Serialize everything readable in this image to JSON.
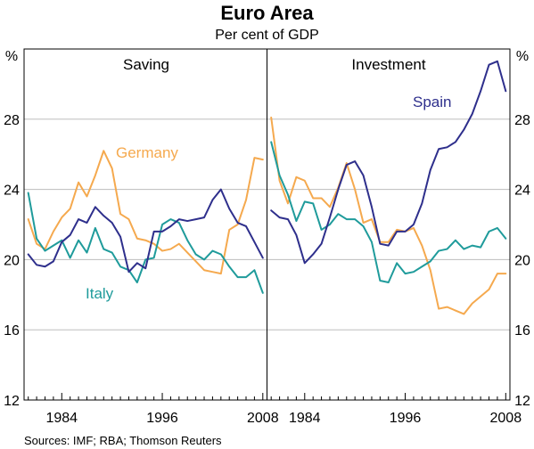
{
  "title": "Euro Area",
  "subtitle": "Per cent of GDP",
  "unit_left": "%",
  "unit_right": "%",
  "source": "Sources: IMF; RBA; Thomson Reuters",
  "colors": {
    "Germany": "#f5a94e",
    "Italy": "#1f9b9b",
    "Spain": "#2e2f8c",
    "grid": "#bdbdbd"
  },
  "chart_data": [
    {
      "type": "line",
      "title": "Saving",
      "ylim": [
        12,
        32
      ],
      "yticks": [
        12,
        16,
        20,
        24,
        28
      ],
      "xlim": [
        1979.5,
        2008.5
      ],
      "xticks": [
        1984,
        1996,
        2008
      ],
      "series": [
        {
          "name": "Germany",
          "x": [
            1980,
            1981,
            1982,
            1983,
            1984,
            1985,
            1986,
            1987,
            1988,
            1989,
            1990,
            1991,
            1992,
            1993,
            1994,
            1995,
            1996,
            1997,
            1998,
            1999,
            2000,
            2001,
            2002,
            2003,
            2004,
            2005,
            2006,
            2007,
            2008
          ],
          "values": [
            22.3,
            20.9,
            20.6,
            21.6,
            22.4,
            22.9,
            24.4,
            23.6,
            24.8,
            26.2,
            25.2,
            22.6,
            22.3,
            21.2,
            21.1,
            20.9,
            20.5,
            20.6,
            20.9,
            20.4,
            19.9,
            19.4,
            19.3,
            19.2,
            21.7,
            22.0,
            23.4,
            25.8,
            25.7
          ]
        },
        {
          "name": "Italy",
          "x": [
            1980,
            1981,
            1982,
            1983,
            1984,
            1985,
            1986,
            1987,
            1988,
            1989,
            1990,
            1991,
            1992,
            1993,
            1994,
            1995,
            1996,
            1997,
            1998,
            1999,
            2000,
            2001,
            2002,
            2003,
            2004,
            2005,
            2006,
            2007,
            2008
          ],
          "values": [
            23.8,
            21.2,
            20.5,
            20.8,
            21.1,
            20.1,
            21.1,
            20.4,
            21.8,
            20.6,
            20.4,
            19.6,
            19.4,
            18.7,
            20.0,
            20.1,
            22.0,
            22.3,
            22.1,
            21.1,
            20.3,
            20.0,
            20.5,
            20.3,
            19.6,
            19.0,
            19.0,
            19.4,
            18.1
          ]
        },
        {
          "name": "Spain",
          "x": [
            1980,
            1981,
            1982,
            1983,
            1984,
            1985,
            1986,
            1987,
            1988,
            1989,
            1990,
            1991,
            1992,
            1993,
            1994,
            1995,
            1996,
            1997,
            1998,
            1999,
            2000,
            2001,
            2002,
            2003,
            2004,
            2005,
            2006,
            2007,
            2008
          ],
          "values": [
            20.3,
            19.7,
            19.6,
            19.9,
            21.0,
            21.4,
            22.3,
            22.1,
            23.0,
            22.5,
            22.1,
            21.3,
            19.3,
            19.8,
            19.5,
            21.6,
            21.6,
            21.9,
            22.3,
            22.2,
            22.3,
            22.4,
            23.4,
            24.0,
            22.9,
            22.1,
            21.9,
            21.0,
            20.1
          ]
        }
      ]
    },
    {
      "type": "line",
      "title": "Investment",
      "ylim": [
        12,
        32
      ],
      "yticks": [
        12,
        16,
        20,
        24,
        28
      ],
      "xlim": [
        1979.5,
        2008.5
      ],
      "xticks": [
        1984,
        1996,
        2008
      ],
      "series": [
        {
          "name": "Germany",
          "x": [
            1980,
            1981,
            1982,
            1983,
            1984,
            1985,
            1986,
            1987,
            1988,
            1989,
            1990,
            1991,
            1992,
            1993,
            1994,
            1995,
            1996,
            1997,
            1998,
            1999,
            2000,
            2001,
            2002,
            2003,
            2004,
            2005,
            2006,
            2007,
            2008
          ],
          "values": [
            28.1,
            24.5,
            23.2,
            24.7,
            24.5,
            23.5,
            23.5,
            23.0,
            24.1,
            25.5,
            24.0,
            22.1,
            22.3,
            21.0,
            21.0,
            21.7,
            21.6,
            21.8,
            20.8,
            19.4,
            17.2,
            17.3,
            17.1,
            16.9,
            17.5,
            17.9,
            18.3,
            19.2,
            19.2
          ]
        },
        {
          "name": "Italy",
          "x": [
            1980,
            1981,
            1982,
            1983,
            1984,
            1985,
            1986,
            1987,
            1988,
            1989,
            1990,
            1991,
            1992,
            1993,
            1994,
            1995,
            1996,
            1997,
            1998,
            1999,
            2000,
            2001,
            2002,
            2003,
            2004,
            2005,
            2006,
            2007,
            2008
          ],
          "values": [
            26.7,
            24.8,
            23.7,
            22.2,
            23.3,
            23.2,
            21.7,
            22.0,
            22.6,
            22.3,
            22.3,
            21.9,
            21.0,
            18.8,
            18.7,
            19.8,
            19.2,
            19.3,
            19.6,
            19.9,
            20.5,
            20.6,
            21.1,
            20.6,
            20.8,
            20.7,
            21.6,
            21.8,
            21.2
          ]
        },
        {
          "name": "Spain",
          "x": [
            1980,
            1981,
            1982,
            1983,
            1984,
            1985,
            1986,
            1987,
            1988,
            1989,
            1990,
            1991,
            1992,
            1993,
            1994,
            1995,
            1996,
            1997,
            1998,
            1999,
            2000,
            2001,
            2002,
            2003,
            2004,
            2005,
            2006,
            2007,
            2008
          ],
          "values": [
            22.8,
            22.4,
            22.3,
            21.4,
            19.8,
            20.3,
            20.9,
            22.4,
            24.0,
            25.4,
            25.6,
            24.8,
            23.0,
            20.9,
            20.8,
            21.6,
            21.6,
            22.0,
            23.2,
            25.1,
            26.3,
            26.4,
            26.7,
            27.4,
            28.3,
            29.6,
            31.1,
            31.3,
            29.6
          ]
        }
      ]
    }
  ],
  "labels": {
    "germany": "Germany",
    "italy": "Italy",
    "spain": "Spain"
  }
}
